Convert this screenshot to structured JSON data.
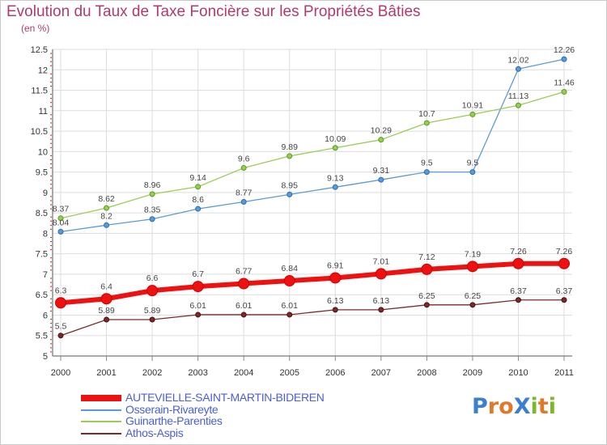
{
  "chart_title": "Evolution du Taux de Taxe Foncière sur les Propriétés Bâties",
  "chart_unit": "(en %)",
  "brand": {
    "letters": [
      {
        "ch": "P",
        "color": "#3a7fd0"
      },
      {
        "ch": "r",
        "color": "#e07a2a"
      },
      {
        "ch": "o",
        "color": "#e07a2a"
      },
      {
        "ch": "X",
        "color": "#3a7fd0"
      },
      {
        "ch": "i",
        "color": "#7ab62e"
      },
      {
        "ch": "t",
        "color": "#e07a2a"
      },
      {
        "ch": "i",
        "color": "#7ab62e"
      }
    ]
  },
  "chart_data": {
    "type": "line",
    "title": "Evolution du Taux de Taxe Foncière sur les Propriétés Bâties",
    "ylabel": "(en %)",
    "x": [
      "2000",
      "2001",
      "2002",
      "2003",
      "2004",
      "2005",
      "2006",
      "2007",
      "2008",
      "2009",
      "2010",
      "2011"
    ],
    "ylim": [
      5,
      12.5
    ],
    "yticks": [
      "5",
      "5.5",
      "6",
      "6.5",
      "7",
      "7.5",
      "8",
      "8.5",
      "9",
      "9.5",
      "10",
      "10.5",
      "11",
      "11.5",
      "12",
      "12.5"
    ],
    "grid": true,
    "legend_position": "bottom-left",
    "series": [
      {
        "name": "AUTEVIELLE-SAINT-MARTIN-BIDEREN",
        "color": "#ee1111",
        "values": [
          6.3,
          6.4,
          6.6,
          6.7,
          6.77,
          6.84,
          6.91,
          7.01,
          7.12,
          7.19,
          7.26,
          7.26
        ],
        "labels": [
          "6.3",
          "6.4",
          "6.6",
          "6.7",
          "6.77",
          "6.84",
          "6.91",
          "7.01",
          "7.12",
          "7.19",
          "7.26",
          "7.26"
        ]
      },
      {
        "name": "Osserain-Rivareyte",
        "color": "#5b9bd5",
        "values": [
          8.04,
          8.2,
          8.35,
          8.6,
          8.77,
          8.95,
          9.13,
          9.31,
          9.5,
          9.5,
          12.02,
          12.26
        ],
        "labels": [
          "8.04",
          "8.2",
          "8.35",
          "8.6",
          "8.77",
          "8.95",
          "9.13",
          "9.31",
          "9.5",
          "9.5",
          "12.02",
          "12.26"
        ]
      },
      {
        "name": "Guinarthe-Parenties",
        "color": "#99cc55",
        "values": [
          8.37,
          8.62,
          8.96,
          9.14,
          9.6,
          9.89,
          10.09,
          10.29,
          10.7,
          10.91,
          11.13,
          11.46
        ],
        "labels": [
          "8.37",
          "8.62",
          "8.96",
          "9.14",
          "9.6",
          "9.89",
          "10.09",
          "10.29",
          "10.7",
          "10.91",
          "11.13",
          "11.46"
        ]
      },
      {
        "name": "Athos-Aspis",
        "color": "#7a2a2a",
        "values": [
          5.5,
          5.89,
          5.89,
          6.01,
          6.01,
          6.01,
          6.13,
          6.13,
          6.25,
          6.25,
          6.37,
          6.37
        ],
        "labels": [
          "5.5",
          "5.89",
          "5.89",
          "6.01",
          "6.01",
          "6.01",
          "6.13",
          "6.13",
          "6.25",
          "6.25",
          "6.37",
          "6.37"
        ]
      }
    ]
  }
}
